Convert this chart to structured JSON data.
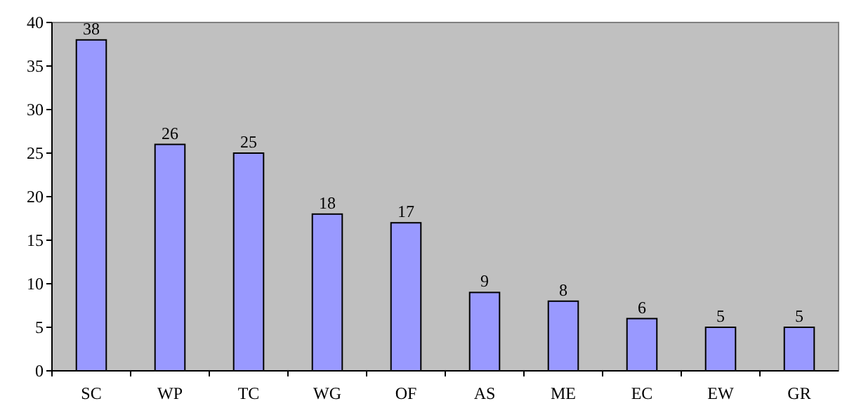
{
  "chart_data": {
    "type": "bar",
    "categories": [
      "SC",
      "WP",
      "TC",
      "WG",
      "OF",
      "AS",
      "ME",
      "EC",
      "EW",
      "GR"
    ],
    "values": [
      38,
      26,
      25,
      18,
      17,
      9,
      8,
      6,
      5,
      5
    ],
    "color": "#9999ff",
    "ylim": [
      0,
      40
    ],
    "yticks": [
      0,
      5,
      10,
      15,
      20,
      25,
      30,
      35,
      40
    ],
    "data_labels": true
  }
}
